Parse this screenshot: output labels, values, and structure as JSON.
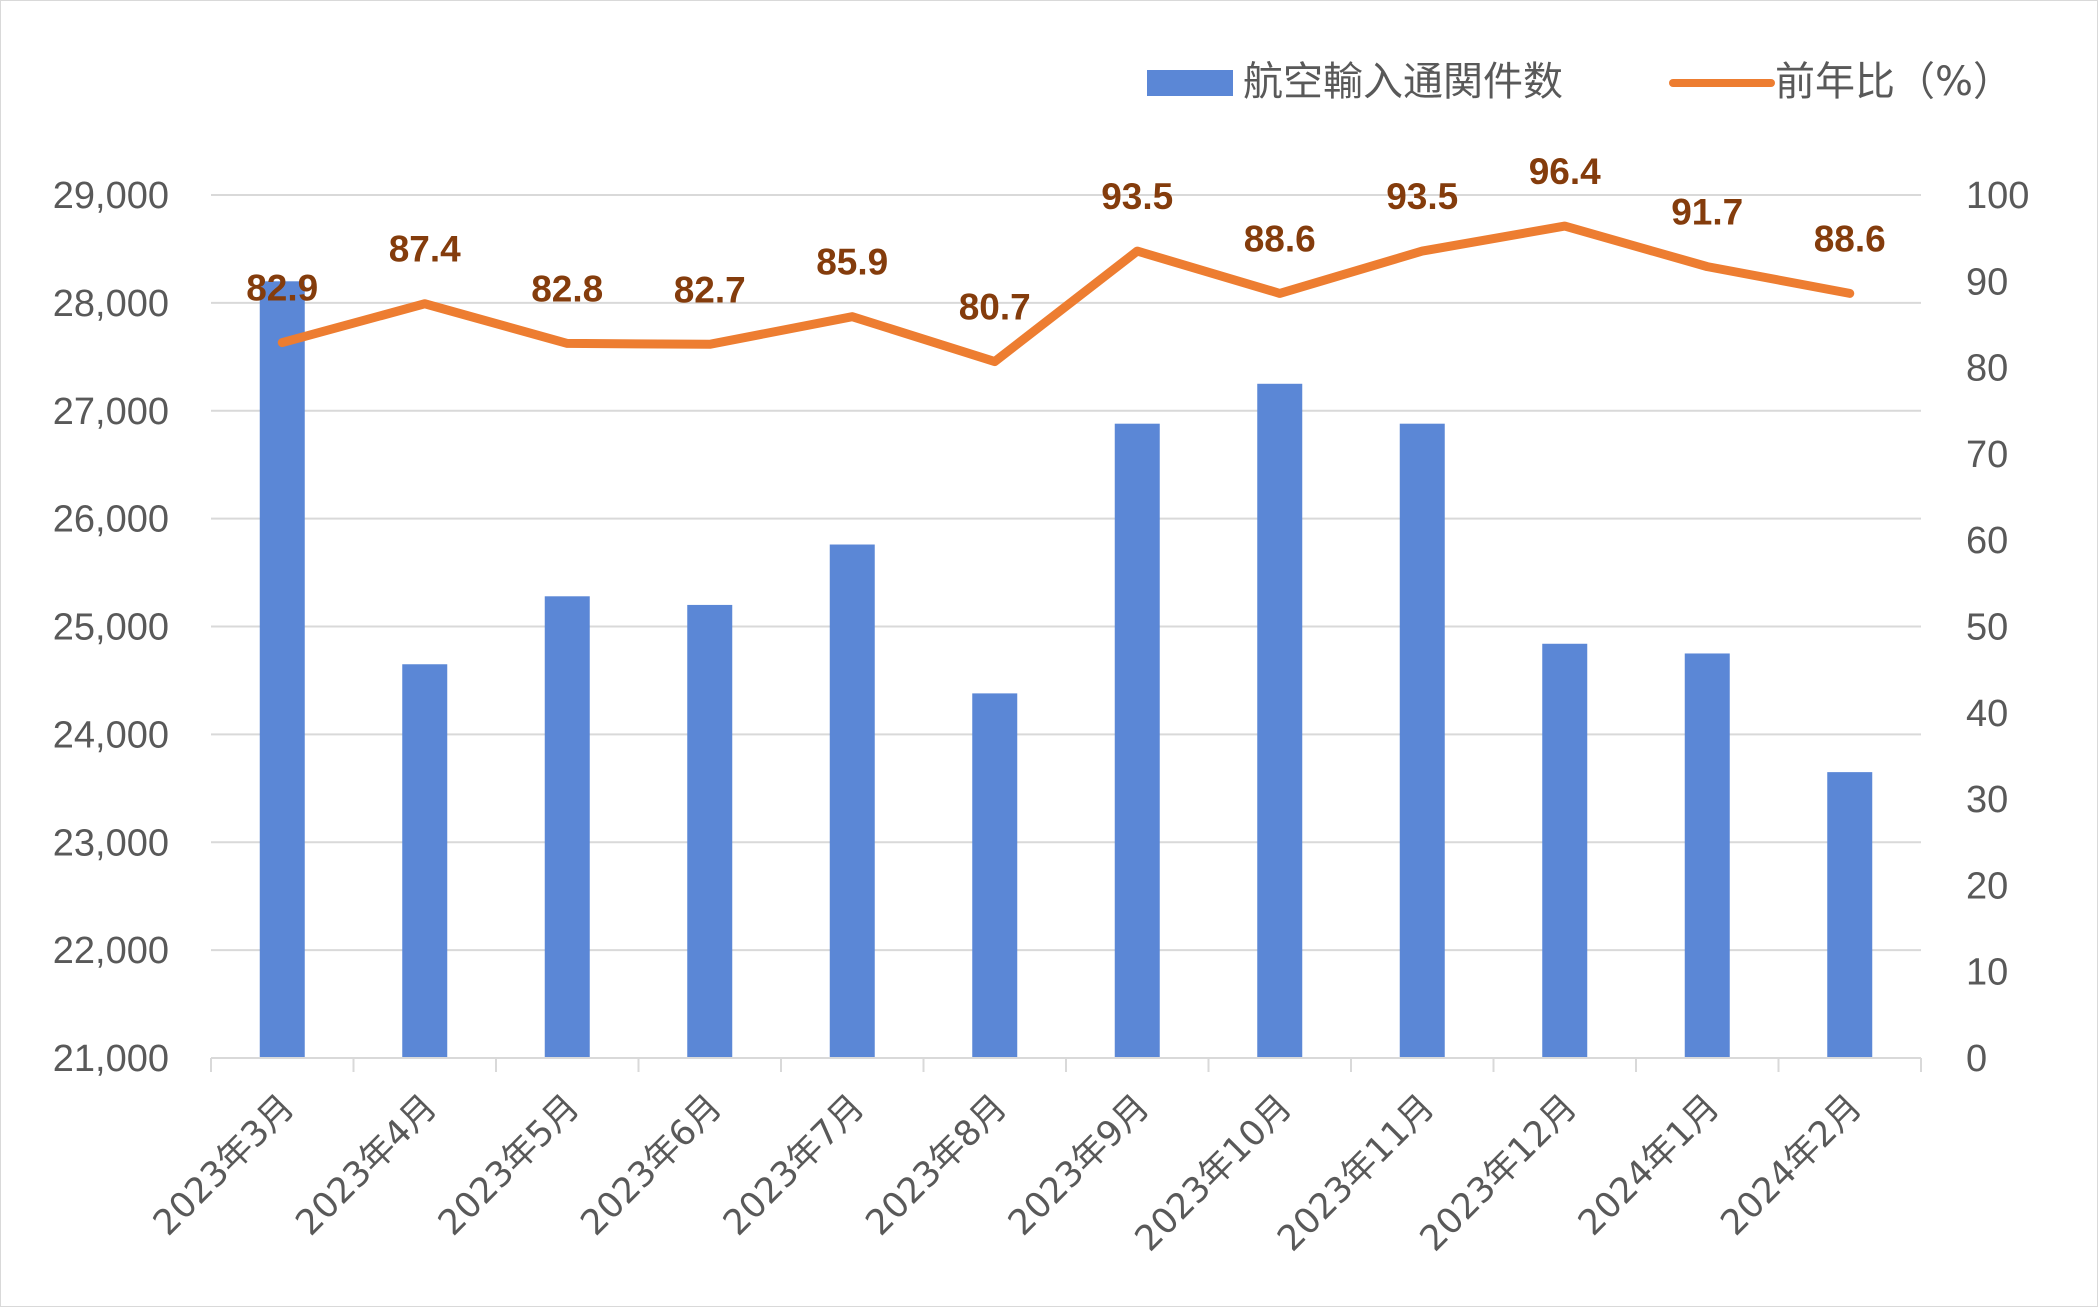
{
  "chart_data": {
    "type": "bar",
    "categories": [
      "2023年3月",
      "2023年4月",
      "2023年5月",
      "2023年6月",
      "2023年7月",
      "2023年8月",
      "2023年9月",
      "2023年10月",
      "2023年11月",
      "2023年12月",
      "2024年1月",
      "2024年2月"
    ],
    "series": [
      {
        "name": "航空輸入通関件数",
        "type": "bar",
        "axis": "left",
        "color": "#5b87d6",
        "values": [
          28200,
          24650,
          25280,
          25200,
          25760,
          24380,
          26880,
          27250,
          26880,
          24840,
          24750,
          23650
        ]
      },
      {
        "name": "前年比（%）",
        "type": "line",
        "axis": "right",
        "color": "#ed7d31",
        "values": [
          82.9,
          87.4,
          82.8,
          82.7,
          85.9,
          80.7,
          93.5,
          88.6,
          93.5,
          96.4,
          91.7,
          88.6
        ],
        "labels": [
          "82.9",
          "87.4",
          "82.8",
          "82.7",
          "85.9",
          "80.7",
          "93.5",
          "88.6",
          "93.5",
          "96.4",
          "91.7",
          "88.6"
        ]
      }
    ],
    "y_left": {
      "min": 21000,
      "max": 29000,
      "ticks": [
        "21,000",
        "22,000",
        "23,000",
        "24,000",
        "25,000",
        "26,000",
        "27,000",
        "28,000",
        "29,000"
      ]
    },
    "y_right": {
      "min": 0,
      "max": 100,
      "ticks": [
        "0",
        "10",
        "20",
        "30",
        "40",
        "50",
        "60",
        "70",
        "80",
        "90",
        "100"
      ]
    },
    "grid": true,
    "legend_position": "top-right",
    "gridline_color": "#d9d9d9",
    "data_label_color": "#843c0c"
  }
}
